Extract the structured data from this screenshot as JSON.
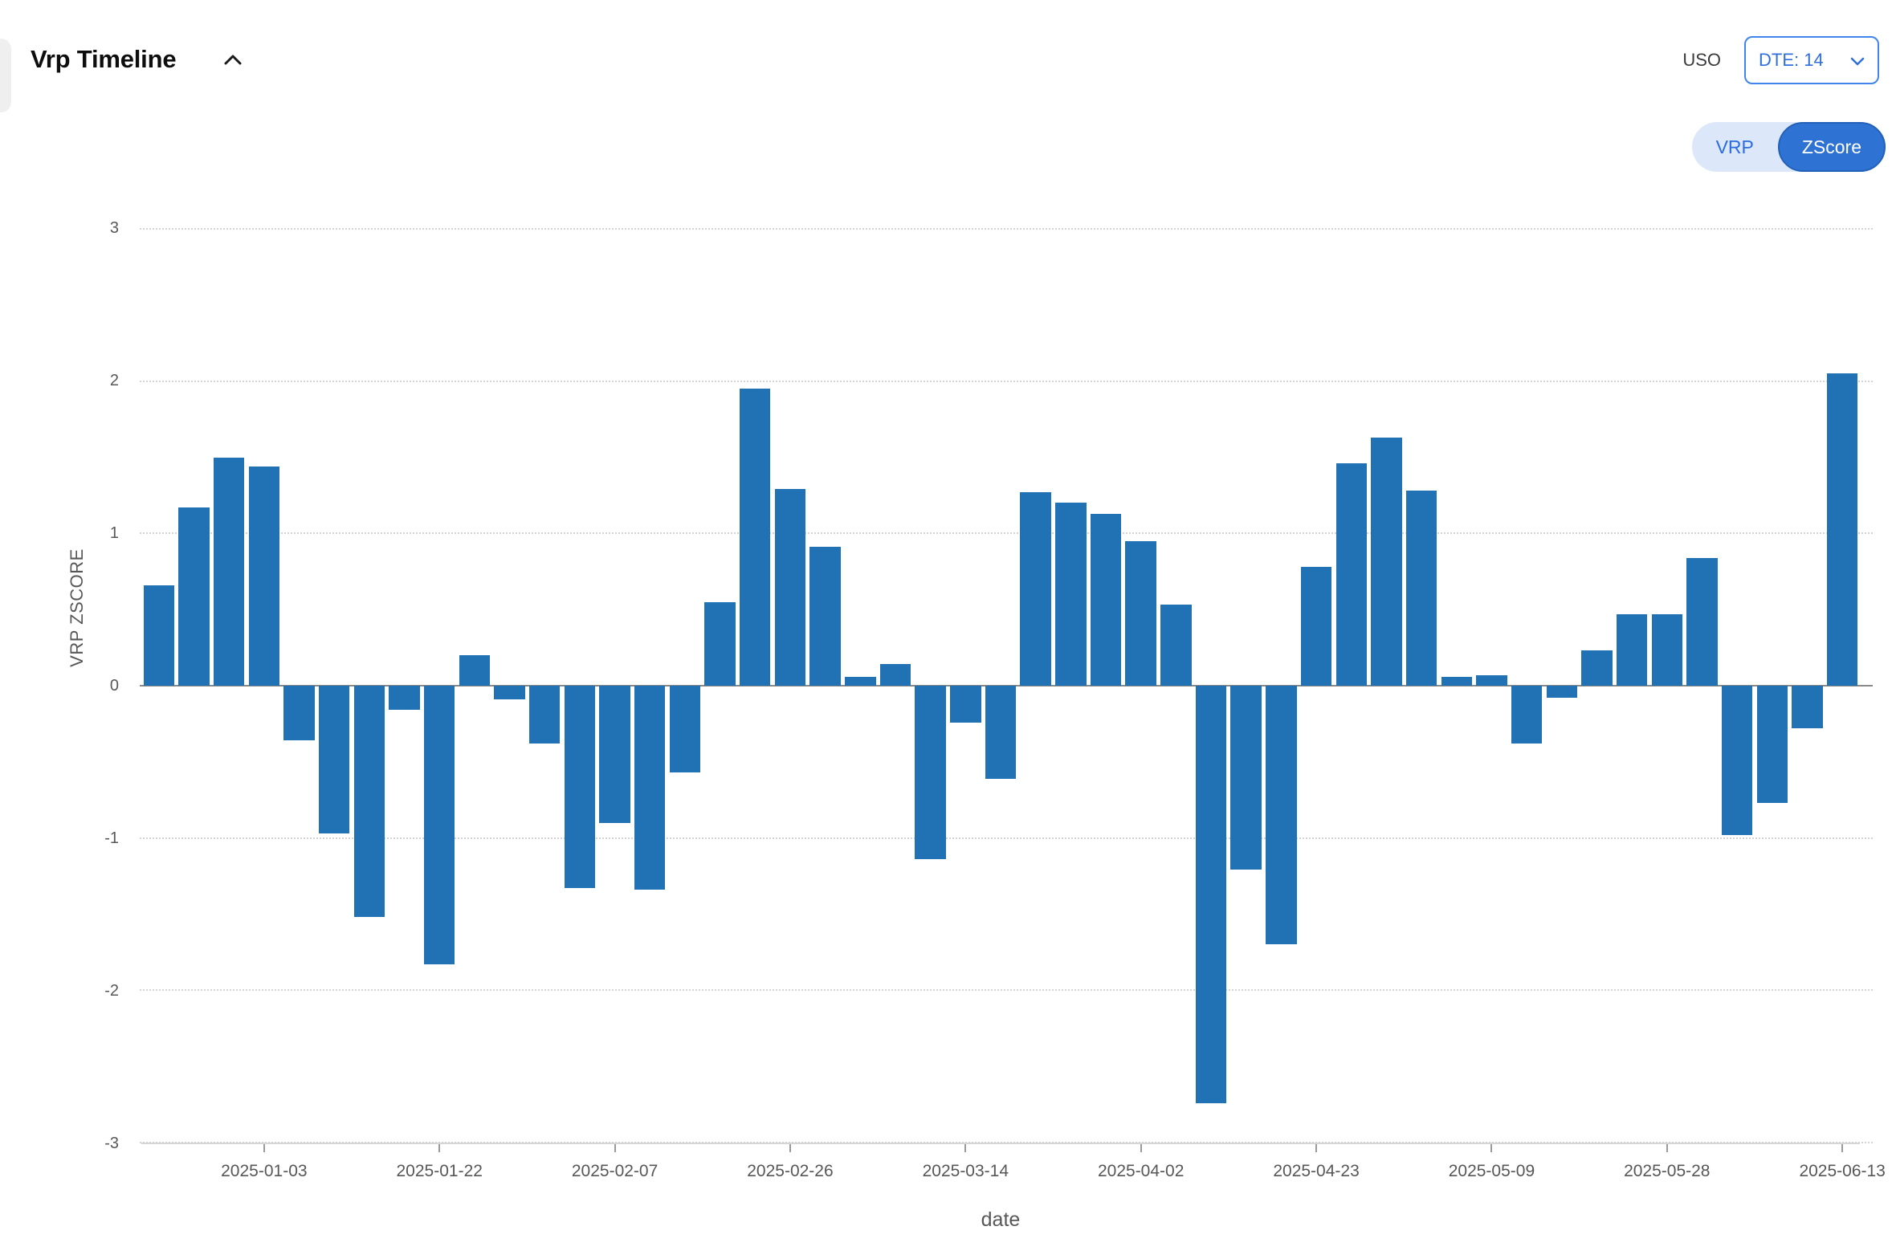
{
  "header": {
    "title": "Vrp Timeline",
    "symbol": "USO",
    "dte_value": "DTE: 14",
    "toggle": {
      "options": [
        "VRP",
        "ZScore"
      ],
      "selected": "ZScore"
    }
  },
  "colors": {
    "bar": "#2171b5",
    "accent_blue": "#2f6fdb",
    "selected_pill": "#2e72d4",
    "toggle_bg": "#dce8f9"
  },
  "chart_data": {
    "type": "bar",
    "title": "Vrp Timeline",
    "xlabel": "date",
    "ylabel": "VRP ZSCORE",
    "ylim": [
      -3,
      3
    ],
    "yticks": [
      3,
      2,
      1,
      0,
      -1,
      -2,
      -3
    ],
    "grid": "horizontal-dotted",
    "legend": "none",
    "bar_color": "#2171b5",
    "x_tick_labels": [
      "2025-01-03",
      "2025-01-22",
      "2025-02-07",
      "2025-02-26",
      "2025-03-14",
      "2025-04-02",
      "2025-04-23",
      "2025-05-09",
      "2025-05-28",
      "2025-06-13"
    ],
    "x_tick_indices": [
      3,
      8,
      13,
      18,
      23,
      28,
      33,
      38,
      43,
      48
    ],
    "values": [
      0.66,
      1.17,
      1.5,
      1.44,
      -0.36,
      -0.97,
      -1.52,
      -0.16,
      -1.83,
      0.2,
      -0.09,
      -0.38,
      -1.33,
      -0.9,
      -1.34,
      -0.57,
      0.55,
      1.95,
      1.29,
      0.91,
      0.06,
      0.14,
      -1.14,
      -0.24,
      -0.61,
      1.27,
      1.2,
      1.13,
      0.95,
      0.53,
      -2.74,
      -1.21,
      -1.7,
      0.78,
      1.46,
      1.63,
      1.28,
      0.06,
      0.07,
      -0.38,
      -0.08,
      0.23,
      0.47,
      0.47,
      0.84,
      -0.98,
      -0.77,
      -0.28,
      2.05
    ]
  }
}
